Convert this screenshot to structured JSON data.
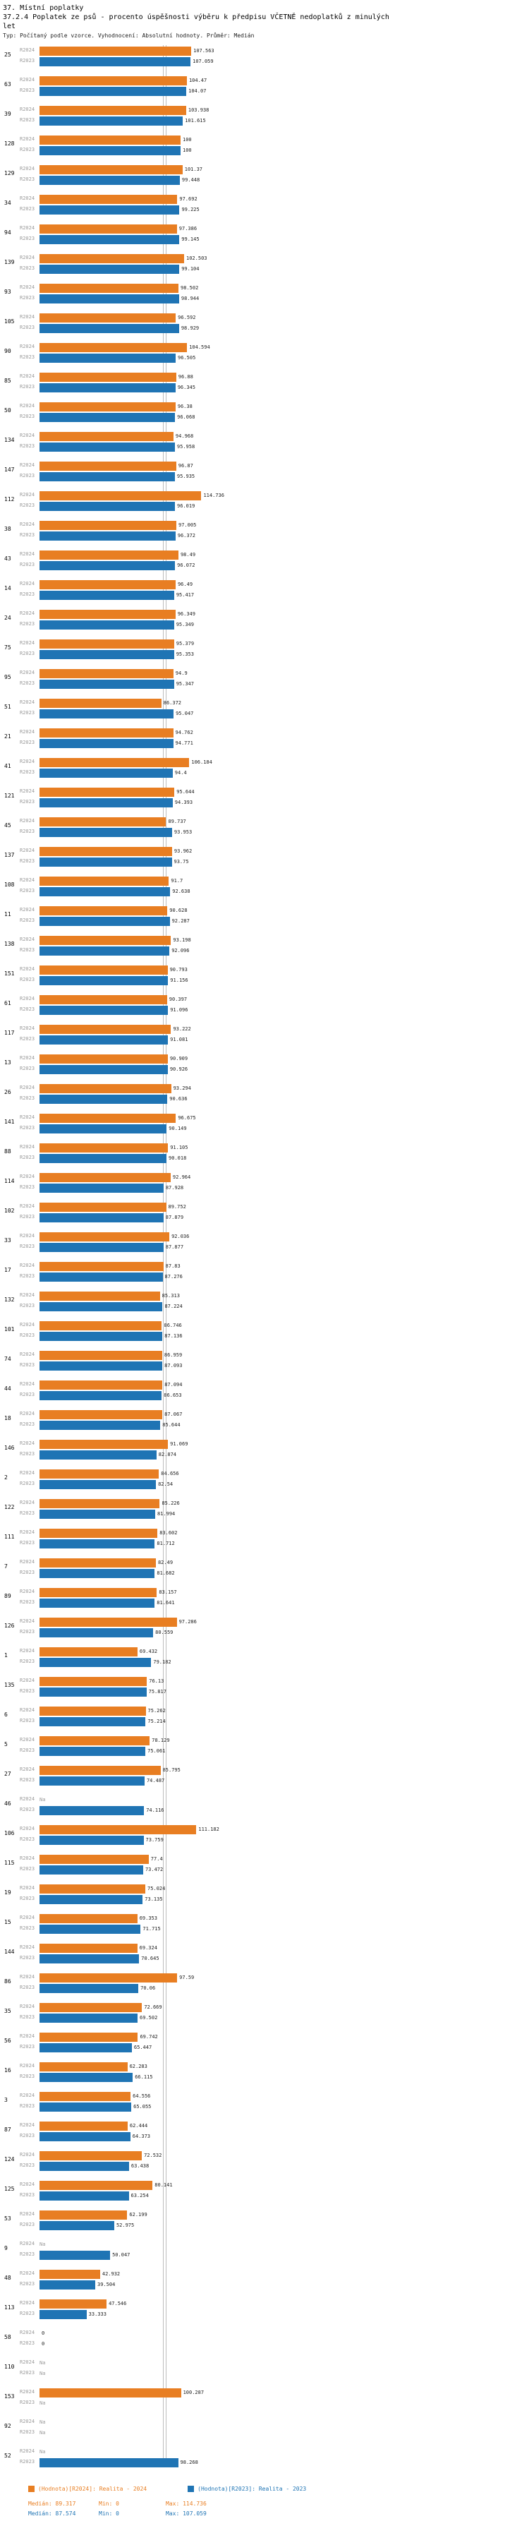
{
  "header": {
    "title": "37. Místní poplatky",
    "subtitle": "37.2.4 Poplatek ze psů - procento úspěšnosti výběru k předpisu VČETNĚ nedoplatků z minulých let",
    "meta": "Typ: Počítaný podle vzorce. Vyhodnocení: Absolutní hodnoty. Průměr: Medián"
  },
  "chart_data": {
    "type": "bar",
    "orientation": "horizontal",
    "xlim": [
      0,
      120
    ],
    "grid": false,
    "na_label": "Na",
    "series_labels": {
      "r2024": "R2024",
      "r2023": "R2023"
    },
    "colors": {
      "r2024": "#e87e22",
      "r2023": "#1f74b4"
    },
    "medians": {
      "r2024": 89.317,
      "r2023": 87.574
    },
    "rows": [
      {
        "id": "25",
        "r2024": 107.563,
        "r2023": 107.059
      },
      {
        "id": "63",
        "r2024": 104.47,
        "r2023": 104.07
      },
      {
        "id": "39",
        "r2024": 103.938,
        "r2023": 101.615
      },
      {
        "id": "128",
        "r2024": 100,
        "r2023": 100
      },
      {
        "id": "129",
        "r2024": 101.37,
        "r2023": 99.448
      },
      {
        "id": "34",
        "r2024": 97.692,
        "r2023": 99.225
      },
      {
        "id": "94",
        "r2024": 97.386,
        "r2023": 99.145
      },
      {
        "id": "139",
        "r2024": 102.503,
        "r2023": 99.104
      },
      {
        "id": "93",
        "r2024": 98.502,
        "r2023": 98.944
      },
      {
        "id": "105",
        "r2024": 96.592,
        "r2023": 98.929
      },
      {
        "id": "90",
        "r2024": 104.594,
        "r2023": 96.505
      },
      {
        "id": "85",
        "r2024": 96.88,
        "r2023": 96.345
      },
      {
        "id": "50",
        "r2024": 96.38,
        "r2023": 96.068
      },
      {
        "id": "134",
        "r2024": 94.968,
        "r2023": 95.958
      },
      {
        "id": "147",
        "r2024": 96.87,
        "r2023": 95.935
      },
      {
        "id": "112",
        "r2024": 114.736,
        "r2023": 96.019
      },
      {
        "id": "38",
        "r2024": 97.005,
        "r2023": 96.372
      },
      {
        "id": "43",
        "r2024": 98.49,
        "r2023": 96.072
      },
      {
        "id": "14",
        "r2024": 96.49,
        "r2023": 95.417
      },
      {
        "id": "24",
        "r2024": 96.349,
        "r2023": 95.349
      },
      {
        "id": "75",
        "r2024": 95.379,
        "r2023": 95.353
      },
      {
        "id": "95",
        "r2024": 94.9,
        "r2023": 95.347
      },
      {
        "id": "51",
        "r2024": 86.372,
        "r2023": 95.047
      },
      {
        "id": "21",
        "r2024": 94.762,
        "r2023": 94.771
      },
      {
        "id": "41",
        "r2024": 106.184,
        "r2023": 94.4
      },
      {
        "id": "121",
        "r2024": 95.644,
        "r2023": 94.393
      },
      {
        "id": "45",
        "r2024": 89.737,
        "r2023": 93.953
      },
      {
        "id": "137",
        "r2024": 93.962,
        "r2023": 93.75
      },
      {
        "id": "108",
        "r2024": 91.7,
        "r2023": 92.638
      },
      {
        "id": "11",
        "r2024": 90.628,
        "r2023": 92.287
      },
      {
        "id": "138",
        "r2024": 93.198,
        "r2023": 92.096
      },
      {
        "id": "151",
        "r2024": 90.793,
        "r2023": 91.156
      },
      {
        "id": "61",
        "r2024": 90.397,
        "r2023": 91.096
      },
      {
        "id": "117",
        "r2024": 93.222,
        "r2023": 91.081
      },
      {
        "id": "13",
        "r2024": 90.909,
        "r2023": 90.926
      },
      {
        "id": "26",
        "r2024": 93.294,
        "r2023": 90.636
      },
      {
        "id": "141",
        "r2024": 96.675,
        "r2023": 90.149
      },
      {
        "id": "88",
        "r2024": 91.105,
        "r2023": 90.018
      },
      {
        "id": "114",
        "r2024": 92.964,
        "r2023": 87.928
      },
      {
        "id": "102",
        "r2024": 89.752,
        "r2023": 87.879
      },
      {
        "id": "33",
        "r2024": 92.036,
        "r2023": 87.877
      },
      {
        "id": "17",
        "r2024": 87.83,
        "r2023": 87.276
      },
      {
        "id": "132",
        "r2024": 85.313,
        "r2023": 87.224
      },
      {
        "id": "101",
        "r2024": 86.746,
        "r2023": 87.136
      },
      {
        "id": "74",
        "r2024": 86.959,
        "r2023": 87.093
      },
      {
        "id": "44",
        "r2024": 87.094,
        "r2023": 86.653
      },
      {
        "id": "18",
        "r2024": 87.067,
        "r2023": 85.644
      },
      {
        "id": "146",
        "r2024": 91.069,
        "r2023": 82.874
      },
      {
        "id": "2",
        "r2024": 84.656,
        "r2023": 82.54
      },
      {
        "id": "122",
        "r2024": 85.226,
        "r2023": 81.994
      },
      {
        "id": "111",
        "r2024": 83.602,
        "r2023": 81.712
      },
      {
        "id": "7",
        "r2024": 82.49,
        "r2023": 81.682
      },
      {
        "id": "89",
        "r2024": 83.157,
        "r2023": 81.641
      },
      {
        "id": "126",
        "r2024": 97.286,
        "r2023": 80.559
      },
      {
        "id": "1",
        "r2024": 69.432,
        "r2023": 79.182
      },
      {
        "id": "135",
        "r2024": 76.13,
        "r2023": 75.817
      },
      {
        "id": "6",
        "r2024": 75.262,
        "r2023": 75.214
      },
      {
        "id": "5",
        "r2024": 78.129,
        "r2023": 75.061
      },
      {
        "id": "27",
        "r2024": 85.795,
        "r2023": 74.487
      },
      {
        "id": "46",
        "r2024": null,
        "r2023": 74.116
      },
      {
        "id": "106",
        "r2024": 111.182,
        "r2023": 73.759
      },
      {
        "id": "115",
        "r2024": 77.4,
        "r2023": 73.472
      },
      {
        "id": "19",
        "r2024": 75.024,
        "r2023": 73.135
      },
      {
        "id": "15",
        "r2024": 69.353,
        "r2023": 71.715
      },
      {
        "id": "144",
        "r2024": 69.324,
        "r2023": 70.645
      },
      {
        "id": "86",
        "r2024": 97.59,
        "r2023": 70.06
      },
      {
        "id": "35",
        "r2024": 72.669,
        "r2023": 69.502
      },
      {
        "id": "56",
        "r2024": 69.742,
        "r2023": 65.447
      },
      {
        "id": "16",
        "r2024": 62.283,
        "r2023": 66.115
      },
      {
        "id": "3",
        "r2024": 64.556,
        "r2023": 65.055
      },
      {
        "id": "87",
        "r2024": 62.444,
        "r2023": 64.373
      },
      {
        "id": "124",
        "r2024": 72.532,
        "r2023": 63.438
      },
      {
        "id": "125",
        "r2024": 80.141,
        "r2023": 63.254
      },
      {
        "id": "53",
        "r2024": 62.199,
        "r2023": 52.975
      },
      {
        "id": "9",
        "r2024": null,
        "r2023": 50.047
      },
      {
        "id": "48",
        "r2024": 42.932,
        "r2023": 39.504
      },
      {
        "id": "113",
        "r2024": 47.546,
        "r2023": 33.333
      },
      {
        "id": "58",
        "r2024": 0,
        "r2023": 0
      },
      {
        "id": "110",
        "r2024": null,
        "r2023": null
      },
      {
        "id": "153",
        "r2024": 100.287,
        "r2023": null
      },
      {
        "id": "92",
        "r2024": null,
        "r2023": null
      },
      {
        "id": "52",
        "r2024": null,
        "r2023": 98.268
      }
    ]
  },
  "footer": {
    "legend": [
      {
        "label": "(Hodnota)[R2024]: Realita - 2024",
        "color": "#e87e22"
      },
      {
        "label": "(Hodnota)[R2023]: Realita - 2023",
        "color": "#1f74b4"
      }
    ],
    "stats": {
      "r2024": {
        "median": "Medián: 89.317",
        "min": "Min: 0",
        "max": "Max: 114.736"
      },
      "r2023": {
        "median": "Medián: 87.574",
        "min": "Min: 0",
        "max": "Max: 107.059"
      }
    }
  }
}
